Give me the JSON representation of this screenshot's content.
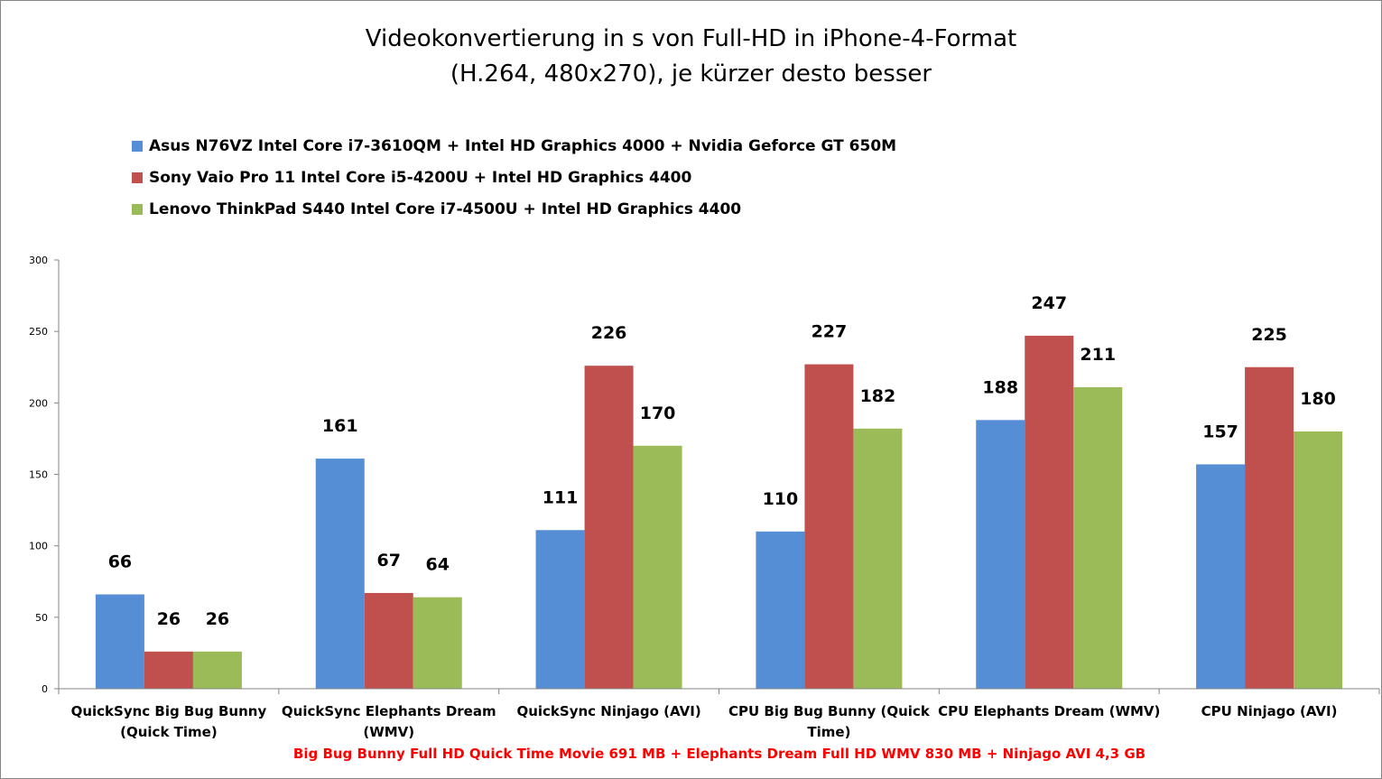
{
  "colors": {
    "series1": "#558ED5",
    "series2": "#C0504D",
    "series3": "#9BBB59",
    "axis": "#868686",
    "footnote": "#FF0000"
  },
  "chart_data": {
    "type": "bar",
    "title_line1": "Videokonvertierung in s von Full-HD in iPhone-4-Format",
    "title_line2": "(H.264, 480x270), je kürzer desto besser",
    "categories": [
      [
        "QuickSync Big Bug Bunny",
        "(Quick Time)"
      ],
      [
        "QuickSync Elephants Dream",
        "(WMV)"
      ],
      [
        "QuickSync Ninjago (AVI)"
      ],
      [
        "CPU Big Bug Bunny (Quick",
        "Time)"
      ],
      [
        "CPU Elephants Dream (WMV)"
      ],
      [
        "CPU Ninjago (AVI)"
      ]
    ],
    "series": [
      {
        "name": "Asus N76VZ Intel Core i7-3610QM + Intel HD Graphics 4000 + Nvidia Geforce GT 650M",
        "values": [
          66,
          161,
          111,
          110,
          188,
          157
        ]
      },
      {
        "name": "Sony Vaio Pro 11 Intel Core i5-4200U + Intel HD Graphics 4400",
        "values": [
          26,
          67,
          226,
          227,
          247,
          225
        ]
      },
      {
        "name": "Lenovo ThinkPad S440 Intel Core i7-4500U + Intel HD Graphics 4400",
        "values": [
          26,
          64,
          170,
          182,
          211,
          180
        ]
      }
    ],
    "yticks": [
      0,
      50,
      100,
      150,
      200,
      250,
      300
    ],
    "ylim": [
      0,
      300
    ],
    "grid": false,
    "legend_position": "top-left",
    "data_labels": true,
    "footnote": "Big Bug Bunny Full HD Quick Time Movie 691 MB + Elephants Dream Full HD WMV 830 MB + Ninjago AVI 4,3 GB"
  }
}
